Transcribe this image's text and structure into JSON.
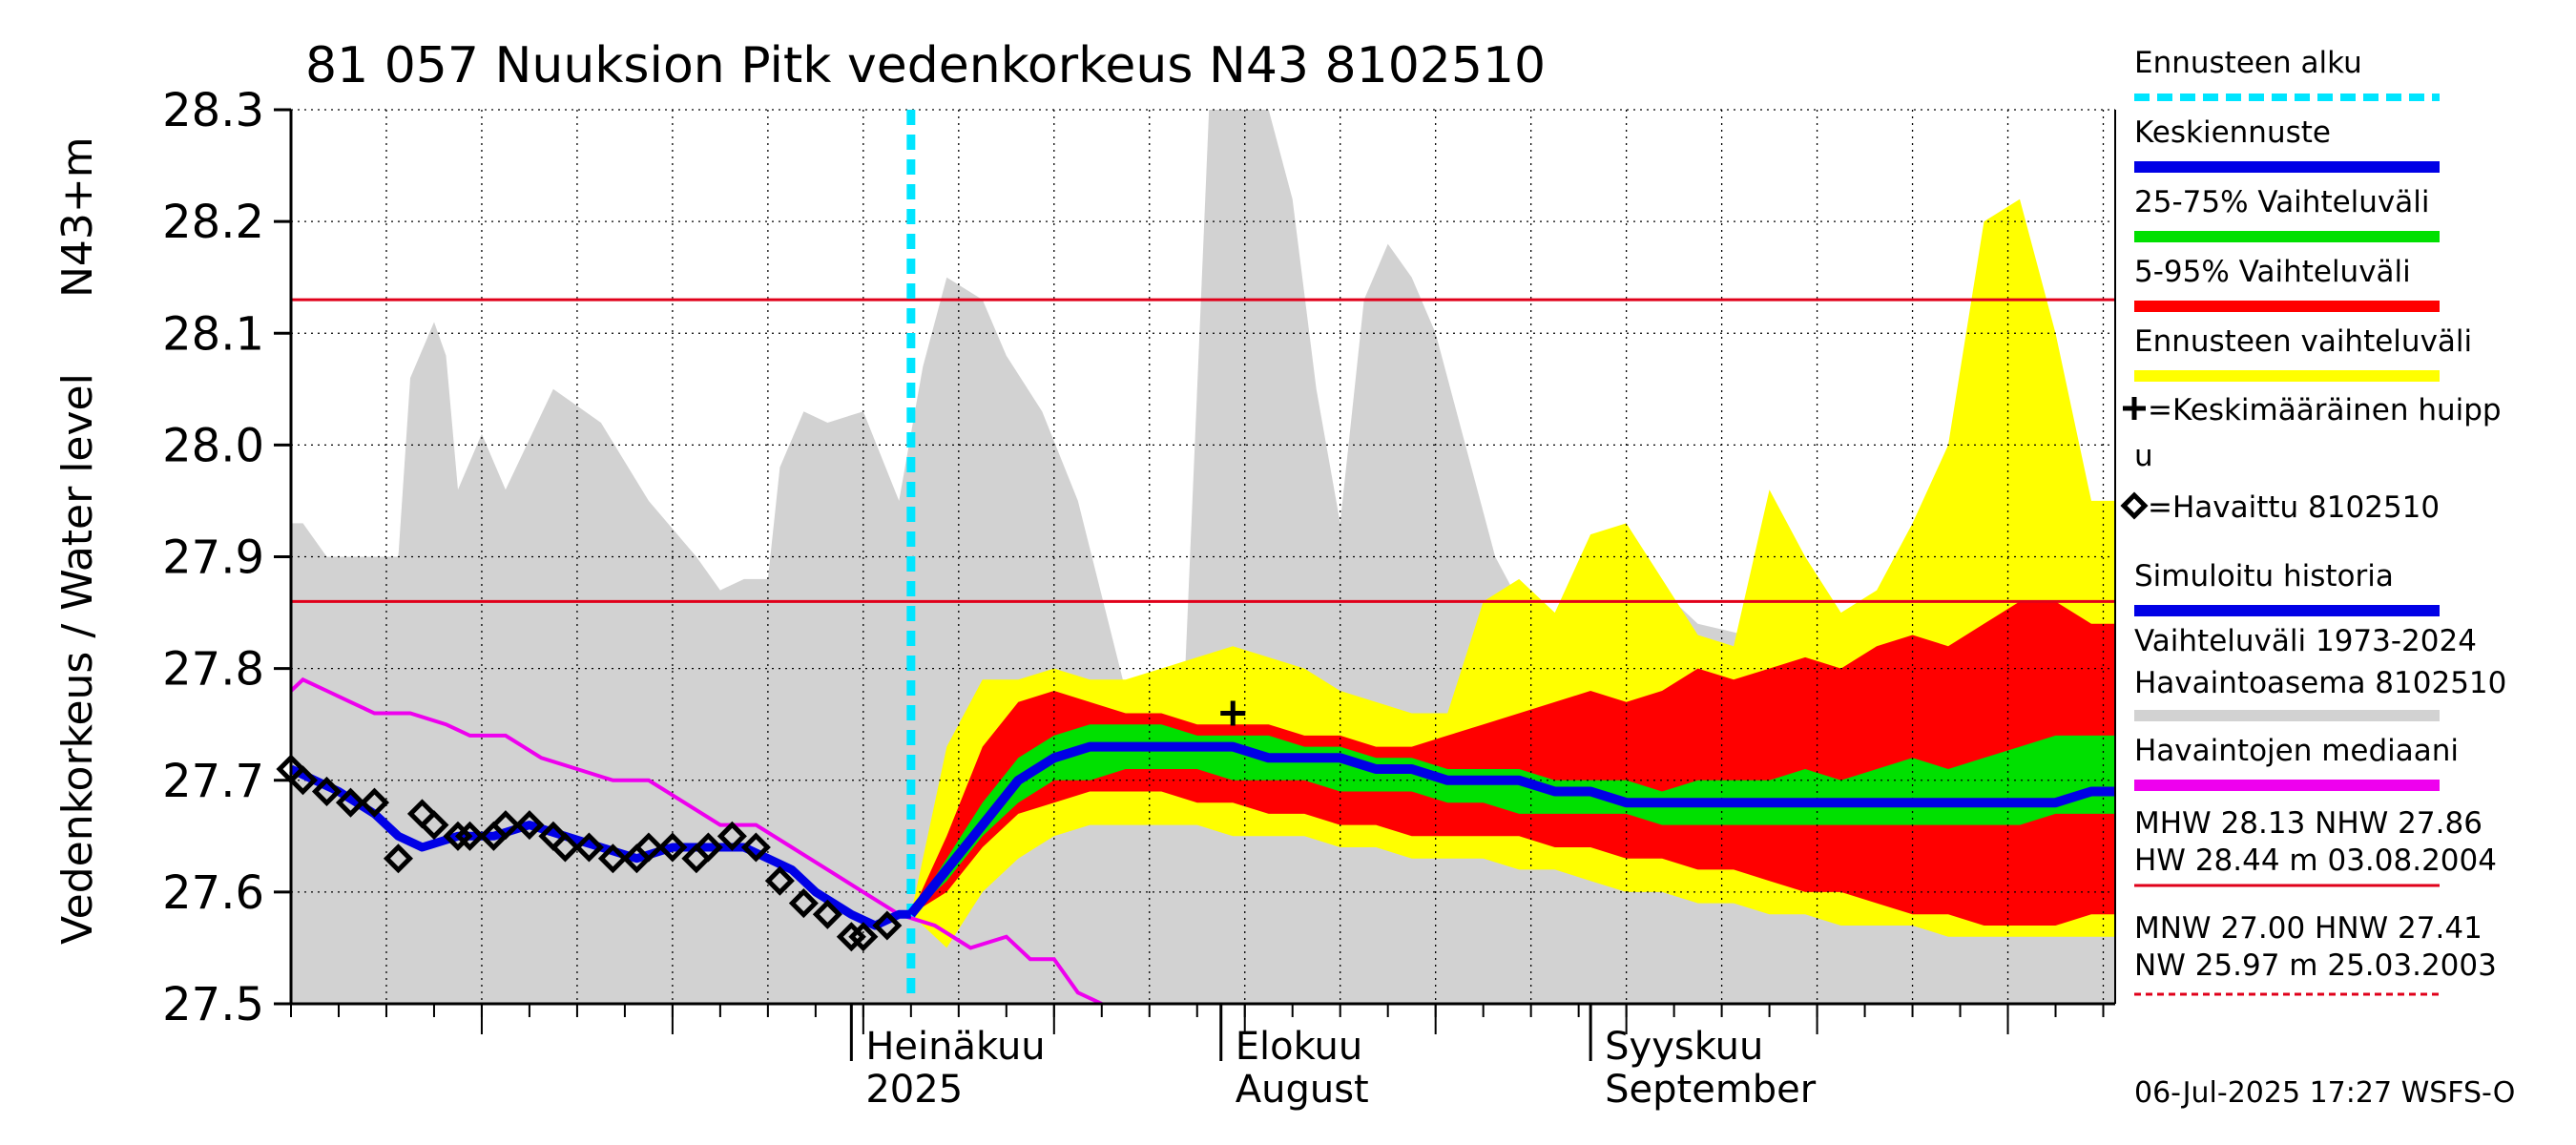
{
  "chart_data": {
    "type": "area",
    "title": "81 057 Nuuksion Pitk vedenkorkeus N43 8102510",
    "ylabel_top": "N43+m",
    "ylabel": "Vedenkorkeus / Water level",
    "ylim": [
      27.5,
      28.3
    ],
    "yticks": [
      "27.5",
      "27.6",
      "27.7",
      "27.8",
      "27.9",
      "28.0",
      "28.1",
      "28.2",
      "28.3"
    ],
    "x_range": [
      "2025-05-15",
      "2025-10-15"
    ],
    "month_labels": [
      {
        "date": "2025-07-01",
        "line1": "Heinäkuu",
        "line2": "2025"
      },
      {
        "date": "2025-08-01",
        "line1": "Elokuu",
        "line2": "August"
      },
      {
        "date": "2025-09-01",
        "line1": "Syyskuu",
        "line2": "September"
      }
    ],
    "forecast_start": "2025-07-06",
    "reference_lines": [
      {
        "name": "MHW",
        "value": 28.13,
        "color": "#e0001a"
      },
      {
        "name": "NHW",
        "value": 27.86,
        "color": "#e0001a"
      }
    ],
    "historical_range": {
      "name": "Vaihteluväli 1973-2024 Havaintoasema 8102510",
      "color": "#d2d2d2",
      "x": [
        "2025-05-15",
        "2025-05-16",
        "2025-05-18",
        "2025-05-22",
        "2025-05-24",
        "2025-05-25",
        "2025-05-27",
        "2025-05-28",
        "2025-05-29",
        "2025-05-31",
        "2025-06-02",
        "2025-06-06",
        "2025-06-10",
        "2025-06-14",
        "2025-06-18",
        "2025-06-20",
        "2025-06-22",
        "2025-06-24",
        "2025-06-25",
        "2025-06-27",
        "2025-06-29",
        "2025-07-02",
        "2025-07-05",
        "2025-07-07",
        "2025-07-09",
        "2025-07-12",
        "2025-07-14",
        "2025-07-17",
        "2025-07-20",
        "2025-07-24",
        "2025-07-27",
        "2025-07-29",
        "2025-07-30",
        "2025-07-31",
        "2025-08-01",
        "2025-08-03",
        "2025-08-05",
        "2025-08-07",
        "2025-08-09",
        "2025-08-11",
        "2025-08-13",
        "2025-08-15",
        "2025-08-17",
        "2025-08-19",
        "2025-08-21",
        "2025-08-24",
        "2025-08-26",
        "2025-08-28",
        "2025-08-30",
        "2025-09-01",
        "2025-09-03",
        "2025-09-06",
        "2025-09-10",
        "2025-09-14",
        "2025-09-18",
        "2025-09-22",
        "2025-09-26",
        "2025-09-30",
        "2025-10-04",
        "2025-10-08",
        "2025-10-12",
        "2025-10-15"
      ],
      "upper": [
        27.93,
        27.93,
        27.9,
        27.9,
        27.9,
        28.06,
        28.11,
        28.08,
        27.96,
        28.01,
        27.96,
        28.05,
        28.02,
        27.95,
        27.9,
        27.87,
        27.88,
        27.88,
        27.98,
        28.03,
        28.02,
        28.03,
        27.95,
        28.07,
        28.15,
        28.13,
        28.08,
        28.03,
        27.95,
        27.78,
        27.8,
        27.8,
        28.05,
        28.3,
        28.3,
        28.3,
        28.3,
        28.22,
        28.05,
        27.93,
        28.13,
        28.18,
        28.15,
        28.1,
        28.02,
        27.9,
        27.86,
        27.83,
        27.85,
        27.9,
        27.92,
        27.88,
        27.84,
        27.83,
        27.8,
        27.8,
        27.78,
        27.78,
        27.78,
        27.78,
        27.78,
        27.78
      ],
      "lower": [
        27.5,
        27.5,
        27.5,
        27.5,
        27.5,
        27.5,
        27.5,
        27.5,
        27.5,
        27.5,
        27.5,
        27.5,
        27.5,
        27.5,
        27.5,
        27.5,
        27.5,
        27.5,
        27.5,
        27.5,
        27.5,
        27.5,
        27.5,
        27.5,
        27.5,
        27.5,
        27.5,
        27.5,
        27.5,
        27.5,
        27.5,
        27.5,
        27.5,
        27.5,
        27.5,
        27.5,
        27.5,
        27.5,
        27.5,
        27.5,
        27.5,
        27.5,
        27.5,
        27.5,
        27.5,
        27.5,
        27.5,
        27.5,
        27.5,
        27.5,
        27.5,
        27.5,
        27.5,
        27.5,
        27.5,
        27.5,
        27.5,
        27.5,
        27.5,
        27.5,
        27.5,
        27.5
      ]
    },
    "forecast_bands": {
      "x": [
        "2025-07-06",
        "2025-07-09",
        "2025-07-12",
        "2025-07-15",
        "2025-07-18",
        "2025-07-21",
        "2025-07-24",
        "2025-07-27",
        "2025-07-30",
        "2025-08-02",
        "2025-08-05",
        "2025-08-08",
        "2025-08-11",
        "2025-08-14",
        "2025-08-17",
        "2025-08-20",
        "2025-08-23",
        "2025-08-26",
        "2025-08-29",
        "2025-09-01",
        "2025-09-04",
        "2025-09-07",
        "2025-09-10",
        "2025-09-13",
        "2025-09-16",
        "2025-09-19",
        "2025-09-22",
        "2025-09-25",
        "2025-09-28",
        "2025-10-01",
        "2025-10-04",
        "2025-10-07",
        "2025-10-10",
        "2025-10-13",
        "2025-10-15"
      ],
      "ennusteen_vaihteluvali": {
        "name": "Ennusteen vaihteluväli",
        "color": "#ffff00",
        "upper": [
          27.58,
          27.73,
          27.79,
          27.79,
          27.8,
          27.79,
          27.79,
          27.8,
          27.81,
          27.82,
          27.81,
          27.8,
          27.78,
          27.77,
          27.76,
          27.76,
          27.86,
          27.88,
          27.85,
          27.92,
          27.93,
          27.88,
          27.83,
          27.82,
          27.96,
          27.9,
          27.85,
          27.87,
          27.93,
          28.0,
          28.2,
          28.22,
          28.1,
          27.95,
          27.95
        ],
        "lower": [
          27.58,
          27.55,
          27.6,
          27.63,
          27.65,
          27.66,
          27.66,
          27.66,
          27.66,
          27.65,
          27.65,
          27.65,
          27.64,
          27.64,
          27.63,
          27.63,
          27.63,
          27.62,
          27.62,
          27.61,
          27.6,
          27.6,
          27.59,
          27.59,
          27.58,
          27.58,
          27.57,
          27.57,
          27.57,
          27.56,
          27.56,
          27.56,
          27.56,
          27.56,
          27.56
        ]
      },
      "vaihteluvali_5_95": {
        "name": "5-95% Vaihteluväli",
        "color": "#ff0000",
        "upper": [
          27.58,
          27.65,
          27.73,
          27.77,
          27.78,
          27.77,
          27.76,
          27.76,
          27.75,
          27.75,
          27.75,
          27.74,
          27.74,
          27.73,
          27.73,
          27.74,
          27.75,
          27.76,
          27.77,
          27.78,
          27.77,
          27.78,
          27.8,
          27.79,
          27.8,
          27.81,
          27.8,
          27.82,
          27.83,
          27.82,
          27.84,
          27.86,
          27.86,
          27.84,
          27.84
        ],
        "lower": [
          27.58,
          27.6,
          27.64,
          27.67,
          27.68,
          27.69,
          27.69,
          27.69,
          27.68,
          27.68,
          27.67,
          27.67,
          27.66,
          27.66,
          27.65,
          27.65,
          27.65,
          27.65,
          27.64,
          27.64,
          27.63,
          27.63,
          27.62,
          27.62,
          27.61,
          27.6,
          27.6,
          27.59,
          27.58,
          27.58,
          27.57,
          27.57,
          27.57,
          27.58,
          27.58
        ]
      },
      "vaihteluvali_25_75": {
        "name": "25-75% Vaihteluväli",
        "color": "#00e000",
        "upper": [
          27.58,
          27.63,
          27.68,
          27.72,
          27.74,
          27.75,
          27.75,
          27.75,
          27.74,
          27.74,
          27.74,
          27.73,
          27.73,
          27.72,
          27.72,
          27.71,
          27.71,
          27.71,
          27.7,
          27.7,
          27.7,
          27.69,
          27.7,
          27.7,
          27.7,
          27.71,
          27.7,
          27.71,
          27.72,
          27.71,
          27.72,
          27.73,
          27.74,
          27.74,
          27.74
        ],
        "lower": [
          27.58,
          27.61,
          27.65,
          27.68,
          27.7,
          27.7,
          27.71,
          27.71,
          27.71,
          27.7,
          27.7,
          27.7,
          27.69,
          27.69,
          27.69,
          27.68,
          27.68,
          27.67,
          27.67,
          27.67,
          27.67,
          27.66,
          27.66,
          27.66,
          27.66,
          27.66,
          27.66,
          27.66,
          27.66,
          27.66,
          27.66,
          27.66,
          27.67,
          27.67,
          27.67
        ]
      },
      "keskiennuste": {
        "name": "Keskiennuste",
        "color": "#0000e6",
        "values": [
          27.58,
          27.62,
          27.66,
          27.7,
          27.72,
          27.73,
          27.73,
          27.73,
          27.73,
          27.73,
          27.72,
          27.72,
          27.72,
          27.71,
          27.71,
          27.7,
          27.7,
          27.7,
          27.69,
          27.69,
          27.68,
          27.68,
          27.68,
          27.68,
          27.68,
          27.68,
          27.68,
          27.68,
          27.68,
          27.68,
          27.68,
          27.68,
          27.68,
          27.69,
          27.69
        ]
      }
    },
    "simulated_history": {
      "name": "Simuloitu historia",
      "color": "#0000e6",
      "x": [
        "2025-05-15",
        "2025-05-17",
        "2025-05-19",
        "2025-05-22",
        "2025-05-24",
        "2025-05-26",
        "2025-05-29",
        "2025-06-01",
        "2025-06-04",
        "2025-06-07",
        "2025-06-10",
        "2025-06-13",
        "2025-06-16",
        "2025-06-18",
        "2025-06-20",
        "2025-06-22",
        "2025-06-24",
        "2025-06-26",
        "2025-06-28",
        "2025-07-01",
        "2025-07-03",
        "2025-07-05",
        "2025-07-06"
      ],
      "values": [
        27.71,
        27.7,
        27.69,
        27.67,
        27.65,
        27.64,
        27.65,
        27.65,
        27.66,
        27.65,
        27.64,
        27.63,
        27.64,
        27.64,
        27.64,
        27.64,
        27.63,
        27.62,
        27.6,
        27.58,
        27.57,
        27.58,
        27.58
      ]
    },
    "observed": {
      "name": "=Havaittu 8102510",
      "x": [
        "2025-05-15",
        "2025-05-16",
        "2025-05-18",
        "2025-05-20",
        "2025-05-22",
        "2025-05-24",
        "2025-05-26",
        "2025-05-27",
        "2025-05-29",
        "2025-05-30",
        "2025-06-01",
        "2025-06-02",
        "2025-06-04",
        "2025-06-06",
        "2025-06-07",
        "2025-06-09",
        "2025-06-11",
        "2025-06-13",
        "2025-06-14",
        "2025-06-16",
        "2025-06-18",
        "2025-06-19",
        "2025-06-21",
        "2025-06-23",
        "2025-06-25",
        "2025-06-27",
        "2025-06-29",
        "2025-07-01",
        "2025-07-02",
        "2025-07-04"
      ],
      "values": [
        27.71,
        27.7,
        27.69,
        27.68,
        27.68,
        27.63,
        27.67,
        27.66,
        27.65,
        27.65,
        27.65,
        27.66,
        27.66,
        27.65,
        27.64,
        27.64,
        27.63,
        27.63,
        27.64,
        27.64,
        27.63,
        27.64,
        27.65,
        27.64,
        27.61,
        27.59,
        27.58,
        27.56,
        27.56,
        27.57
      ]
    },
    "median": {
      "name": "Havaintojen mediaani",
      "color": "#ee00ee",
      "x": [
        "2025-05-15",
        "2025-05-16",
        "2025-05-18",
        "2025-05-20",
        "2025-05-22",
        "2025-05-25",
        "2025-05-28",
        "2025-05-30",
        "2025-06-02",
        "2025-06-05",
        "2025-06-08",
        "2025-06-11",
        "2025-06-14",
        "2025-06-17",
        "2025-06-20",
        "2025-06-23",
        "2025-06-26",
        "2025-06-29",
        "2025-07-02",
        "2025-07-05",
        "2025-07-08",
        "2025-07-11",
        "2025-07-14",
        "2025-07-16",
        "2025-07-18",
        "2025-07-20",
        "2025-07-22"
      ],
      "values": [
        27.78,
        27.79,
        27.78,
        27.77,
        27.76,
        27.76,
        27.75,
        27.74,
        27.74,
        27.72,
        27.71,
        27.7,
        27.7,
        27.68,
        27.66,
        27.66,
        27.64,
        27.62,
        27.6,
        27.58,
        27.57,
        27.55,
        27.56,
        27.54,
        27.54,
        27.51,
        27.5
      ]
    },
    "mean_peak": {
      "name": "=Keskimääräinen huippu",
      "x": "2025-08-02",
      "value": 27.76
    },
    "legend": [
      {
        "label": "Ennusteen alku",
        "style": "dashed",
        "color": "#00e5ff"
      },
      {
        "label": "Keskiennuste",
        "style": "bar",
        "color": "#0000e6"
      },
      {
        "label": "25-75% Vaihteluväli",
        "style": "bar",
        "color": "#00e000"
      },
      {
        "label": "5-95% Vaihteluväli",
        "style": "bar",
        "color": "#ff0000"
      },
      {
        "label": "Ennusteen vaihteluväli",
        "style": "bar",
        "color": "#ffff00"
      },
      {
        "label": "=Keskimääräinen huipp",
        "label2": "u",
        "style": "plus",
        "color": "#000000"
      },
      {
        "label": "=Havaittu 8102510",
        "style": "diamond",
        "color": "#000000"
      },
      {
        "label": "Simuloitu historia",
        "style": "bar",
        "color": "#0000e6"
      },
      {
        "label": "Vaihteluväli 1973-2024",
        "label2": " Havaintoasema 8102510",
        "style": "bar",
        "color": "#d2d2d2"
      },
      {
        "label": "Havaintojen mediaani",
        "style": "bar",
        "color": "#ee00ee"
      }
    ],
    "stats": {
      "line1": "MHW  28.13 NHW  27.86",
      "line2": "HW  28.44 m 03.08.2004",
      "line3": "MNW  27.00 HNW  27.41",
      "line4": "NW  25.97 m 25.03.2003"
    },
    "timestamp": "06-Jul-2025 17:27 WSFS-O"
  }
}
